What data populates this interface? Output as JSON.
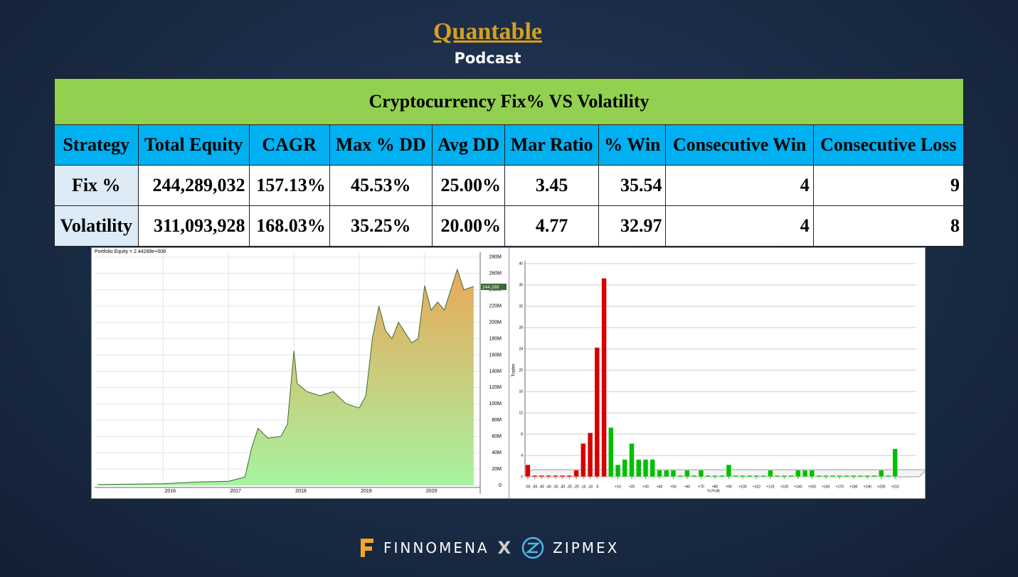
{
  "header": {
    "title": "Quantable",
    "subtitle": "Podcast"
  },
  "table": {
    "title": "Cryptocurrency Fix% VS Volatility",
    "columns": [
      "Strategy",
      "Total Equity",
      "CAGR",
      "Max % DD",
      "Avg DD",
      "Mar Ratio",
      "% Win",
      "Consecutive Win",
      "Consecutive Loss"
    ],
    "rows": [
      [
        "Fix %",
        "244,289,032",
        "157.13%",
        "45.53%",
        "25.00%",
        "3.45",
        "35.54",
        "4",
        "9"
      ],
      [
        "Volatility",
        "311,093,928",
        "168.03%",
        "35.25%",
        "20.00%",
        "4.77",
        "32.97",
        "4",
        "8"
      ]
    ]
  },
  "chart_data": [
    {
      "type": "area",
      "title": "Portfolio Equity = 2.44289e+008",
      "annotation": "244,289",
      "x": [
        2015.0,
        2016.0,
        2016.5,
        2017.0,
        2017.25,
        2017.35,
        2017.45,
        2017.6,
        2017.8,
        2017.9,
        2018.0,
        2018.05,
        2018.2,
        2018.4,
        2018.6,
        2018.8,
        2019.0,
        2019.1,
        2019.2,
        2019.3,
        2019.4,
        2019.5,
        2019.6,
        2019.8,
        2019.9,
        2020.0,
        2020.1,
        2020.2,
        2020.3,
        2020.5,
        2020.6,
        2020.75
      ],
      "values": [
        1,
        2,
        4,
        5,
        10,
        45,
        70,
        58,
        60,
        75,
        165,
        125,
        115,
        110,
        115,
        100,
        95,
        110,
        180,
        220,
        190,
        180,
        200,
        175,
        180,
        245,
        215,
        225,
        215,
        265,
        240,
        244
      ],
      "xlim": [
        2014.95,
        2020.85
      ],
      "xticks": [
        2016,
        2017,
        2018,
        2019,
        2020
      ],
      "ylim": [
        0,
        286
      ],
      "yticks": [
        0,
        {
          "value": 20,
          "label": "20M"
        },
        {
          "value": 40,
          "label": "40M"
        },
        {
          "value": 60,
          "label": "60M"
        },
        {
          "value": 80,
          "label": "80M"
        },
        {
          "value": 100,
          "label": "100M"
        },
        {
          "value": 120,
          "label": "120M"
        },
        {
          "value": 140,
          "label": "140M"
        },
        {
          "value": 160,
          "label": "160M"
        },
        {
          "value": 180,
          "label": "180M"
        },
        {
          "value": 200,
          "label": "200M"
        },
        {
          "value": 220,
          "label": "220M"
        },
        {
          "value": 240,
          "label": "240M"
        },
        {
          "value": 260,
          "label": "260M"
        },
        {
          "value": 280,
          "label": "280M"
        }
      ],
      "color": "#3b6b34",
      "fill_colors": [
        "#eaa85a",
        "#a6f3a0"
      ],
      "y_axis_side": "right",
      "grid": true
    },
    {
      "type": "bar",
      "xlabel": "% Profit",
      "ylabel": "Trades",
      "x": [
        -55,
        -50,
        -45,
        -40,
        -35,
        -30,
        -25,
        -20,
        -15,
        -10,
        -5,
        0,
        5,
        10,
        15,
        20,
        25,
        30,
        35,
        40,
        45,
        50,
        55,
        60,
        65,
        70,
        75,
        80,
        85,
        90,
        95,
        100,
        105,
        110,
        115,
        120,
        125,
        130,
        135,
        140,
        145,
        150,
        155,
        160,
        165,
        170,
        175,
        180,
        185,
        190,
        195,
        200,
        205,
        210
      ],
      "values": [
        2,
        0,
        0,
        0,
        0,
        0,
        0,
        1,
        6,
        8,
        24,
        37,
        9,
        2,
        3,
        6,
        3,
        3,
        3,
        1,
        1,
        1,
        0,
        1,
        0,
        1,
        0,
        0,
        0,
        2,
        0,
        0,
        0,
        0,
        0,
        1,
        0,
        0,
        0,
        1,
        1,
        1,
        0,
        0,
        0,
        0,
        0,
        0,
        0,
        0,
        0,
        1,
        0,
        5
      ],
      "xlim": [
        -57,
        215
      ],
      "xticks": [
        -55,
        -50,
        -45,
        -40,
        -35,
        -30,
        -25,
        -20,
        -15,
        -10,
        -5,
        {
          "value": 10,
          "label": "+10"
        },
        {
          "value": 20,
          "label": "+20"
        },
        {
          "value": 30,
          "label": "+30"
        },
        {
          "value": 40,
          "label": "+40"
        },
        {
          "value": 50,
          "label": "+50"
        },
        {
          "value": 60,
          "label": "+60"
        },
        {
          "value": 70,
          "label": "+70"
        },
        {
          "value": 80,
          "label": "+80"
        },
        {
          "value": 90,
          "label": "+90"
        },
        {
          "value": 100,
          "label": "+100"
        },
        {
          "value": 110,
          "label": "+110"
        },
        {
          "value": 120,
          "label": "+120"
        },
        {
          "value": 130,
          "label": "+130"
        },
        {
          "value": 140,
          "label": "+140"
        },
        {
          "value": 150,
          "label": "+150"
        },
        {
          "value": 160,
          "label": "+160"
        },
        {
          "value": 170,
          "label": "+170"
        },
        {
          "value": 180,
          "label": "+180"
        },
        {
          "value": 190,
          "label": "+190"
        },
        {
          "value": 200,
          "label": "+200"
        },
        {
          "value": 210,
          "label": "+210"
        }
      ],
      "ylim": [
        0,
        40
      ],
      "yticks": [
        0,
        4,
        8,
        12,
        16,
        20,
        24,
        28,
        32,
        36,
        40
      ],
      "colors": {
        "loss": "#d60000",
        "profit": "#00bf00"
      },
      "grid": true
    }
  ],
  "footer": {
    "brand_left": "FINNOMENA",
    "separator": "X",
    "brand_right": "ZIPMEX"
  }
}
